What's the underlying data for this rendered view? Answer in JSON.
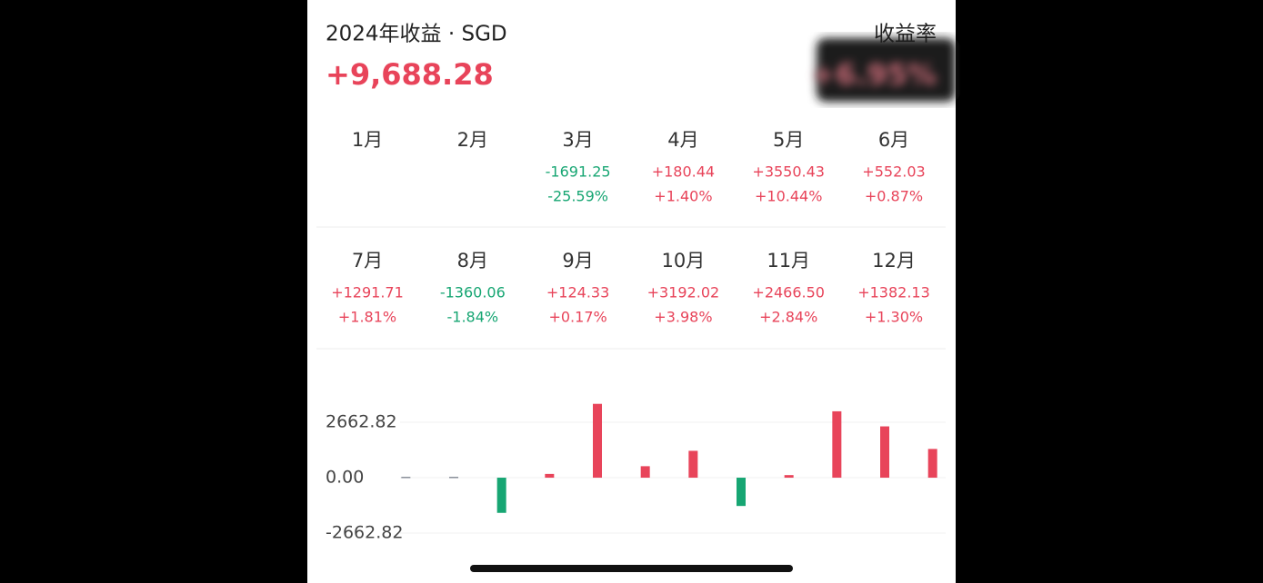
{
  "header": {
    "title": "2024年收益 · SGD",
    "total": "+9,688.28",
    "rate_label": "收益率",
    "rate": "+6.95%"
  },
  "months": [
    {
      "label": "1月"
    },
    {
      "label": "2月"
    },
    {
      "label": "3月",
      "amount": "-1691.25",
      "percent": "-25.59%"
    },
    {
      "label": "4月",
      "amount": "+180.44",
      "percent": "+1.40%"
    },
    {
      "label": "5月",
      "amount": "+3550.43",
      "percent": "+10.44%"
    },
    {
      "label": "6月",
      "amount": "+552.03",
      "percent": "+0.87%"
    },
    {
      "label": "7月",
      "amount": "+1291.71",
      "percent": "+1.81%"
    },
    {
      "label": "8月",
      "amount": "-1360.06",
      "percent": "-1.84%"
    },
    {
      "label": "9月",
      "amount": "+124.33",
      "percent": "+0.17%"
    },
    {
      "label": "10月",
      "amount": "+3192.02",
      "percent": "+3.98%"
    },
    {
      "label": "11月",
      "amount": "+2466.50",
      "percent": "+2.84%"
    },
    {
      "label": "12月",
      "amount": "+1382.13",
      "percent": "+1.30%"
    }
  ],
  "chart_data": {
    "type": "bar",
    "categories": [
      null,
      null,
      null,
      null,
      null,
      null,
      null,
      null,
      null,
      null,
      null,
      null
    ],
    "values": [
      0,
      0,
      -1691.25,
      180.44,
      3550.43,
      552.03,
      1291.71,
      -1360.06,
      124.33,
      3192.02,
      2466.5,
      1382.13
    ],
    "positive_color": "#e8445a",
    "negative_color": "#17a673",
    "zero_color": "#8a8f99",
    "ylim": [
      -3300,
      3800
    ],
    "yticks": [
      2662.82,
      {
        "value": 0,
        "label": "0.00"
      },
      -2662.82
    ],
    "grid": true
  }
}
